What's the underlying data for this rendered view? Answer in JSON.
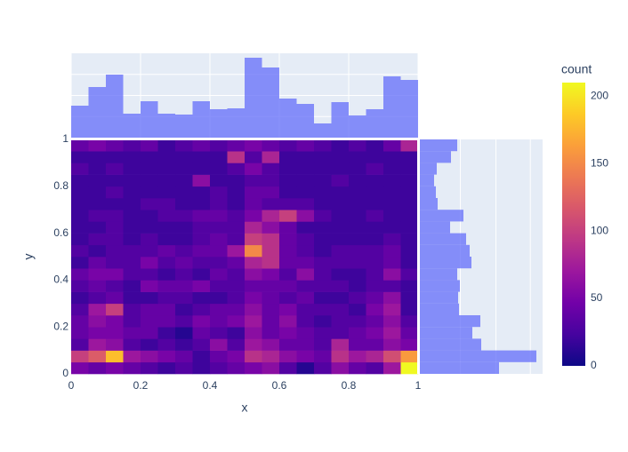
{
  "chart_data": {
    "type": "density_heatmap",
    "xlabel": "x",
    "ylabel": "y",
    "xlim": [
      0,
      1
    ],
    "xticks": [
      0,
      0.2,
      0.4,
      0.6,
      0.8,
      1
    ],
    "ylim": [
      0,
      1
    ],
    "yticks": [
      0,
      0.2,
      0.4,
      0.6,
      0.8,
      1
    ],
    "z": [
      [
        50,
        40,
        50,
        40,
        30,
        20,
        30,
        20,
        30,
        40,
        50,
        60,
        30,
        10,
        30,
        60,
        40,
        30,
        70,
        210
      ],
      [
        100,
        120,
        180,
        70,
        60,
        50,
        40,
        20,
        40,
        50,
        90,
        80,
        60,
        50,
        40,
        90,
        70,
        80,
        110,
        160
      ],
      [
        30,
        70,
        60,
        30,
        20,
        30,
        20,
        30,
        60,
        30,
        70,
        60,
        40,
        40,
        30,
        80,
        40,
        40,
        60,
        50
      ],
      [
        40,
        50,
        50,
        40,
        40,
        20,
        10,
        40,
        30,
        20,
        60,
        40,
        50,
        40,
        30,
        30,
        40,
        50,
        70,
        40
      ],
      [
        40,
        60,
        50,
        30,
        40,
        40,
        30,
        50,
        40,
        50,
        70,
        40,
        60,
        30,
        20,
        30,
        30,
        40,
        60,
        30
      ],
      [
        30,
        70,
        100,
        30,
        40,
        40,
        20,
        30,
        40,
        40,
        60,
        40,
        50,
        30,
        30,
        30,
        20,
        50,
        70,
        20
      ],
      [
        20,
        30,
        40,
        20,
        20,
        30,
        30,
        20,
        20,
        30,
        50,
        40,
        30,
        40,
        20,
        20,
        30,
        40,
        60,
        20
      ],
      [
        30,
        40,
        30,
        20,
        50,
        40,
        40,
        50,
        30,
        30,
        40,
        40,
        40,
        30,
        30,
        30,
        20,
        30,
        30,
        20
      ],
      [
        40,
        50,
        50,
        30,
        30,
        20,
        30,
        20,
        40,
        30,
        60,
        50,
        30,
        60,
        30,
        20,
        20,
        30,
        60,
        30
      ],
      [
        20,
        40,
        30,
        30,
        50,
        30,
        40,
        30,
        30,
        40,
        80,
        90,
        40,
        40,
        30,
        30,
        30,
        30,
        40,
        20
      ],
      [
        30,
        20,
        30,
        30,
        30,
        40,
        30,
        40,
        40,
        70,
        150,
        90,
        40,
        30,
        20,
        30,
        30,
        30,
        40,
        20
      ],
      [
        20,
        30,
        30,
        20,
        30,
        20,
        20,
        30,
        40,
        30,
        100,
        90,
        40,
        30,
        20,
        20,
        20,
        20,
        30,
        20
      ],
      [
        20,
        20,
        30,
        20,
        20,
        20,
        20,
        30,
        30,
        30,
        80,
        60,
        40,
        20,
        20,
        20,
        20,
        20,
        20,
        20
      ],
      [
        20,
        30,
        30,
        20,
        20,
        30,
        30,
        40,
        40,
        30,
        50,
        80,
        100,
        60,
        30,
        20,
        20,
        30,
        20,
        20
      ],
      [
        20,
        20,
        20,
        20,
        30,
        30,
        20,
        20,
        30,
        20,
        40,
        30,
        30,
        30,
        20,
        20,
        20,
        20,
        20,
        20
      ],
      [
        20,
        20,
        30,
        20,
        20,
        20,
        20,
        20,
        30,
        20,
        40,
        40,
        20,
        20,
        20,
        20,
        20,
        20,
        20,
        20
      ],
      [
        20,
        20,
        20,
        20,
        20,
        20,
        20,
        60,
        20,
        20,
        30,
        30,
        20,
        20,
        20,
        30,
        20,
        20,
        20,
        20
      ],
      [
        30,
        20,
        30,
        20,
        20,
        20,
        20,
        20,
        20,
        30,
        50,
        30,
        20,
        20,
        20,
        20,
        20,
        30,
        20,
        20
      ],
      [
        20,
        20,
        20,
        20,
        20,
        20,
        20,
        20,
        20,
        90,
        30,
        80,
        20,
        20,
        20,
        20,
        20,
        20,
        20,
        20
      ],
      [
        40,
        50,
        40,
        30,
        40,
        20,
        30,
        40,
        30,
        40,
        50,
        40,
        30,
        40,
        30,
        20,
        30,
        20,
        40,
        80
      ]
    ],
    "colorbar_title": "count",
    "zlim": [
      0,
      210
    ],
    "zticks": [
      0,
      50,
      100,
      150,
      200
    ],
    "colorscale": [
      "#0d0887",
      "#46039f",
      "#7201a8",
      "#9c179e",
      "#bd3786",
      "#d8576b",
      "#ed7953",
      "#fb9f3a",
      "#fdca26",
      "#f0f921"
    ],
    "marginal_color": "#636efa",
    "top_histogram": {
      "values": [
        576,
        912,
        1136,
        432,
        656,
        432,
        416,
        656,
        512,
        528,
        1440,
        1264,
        704,
        608,
        256,
        640,
        400,
        512,
        1104,
        1040
      ],
      "ylim": [
        0,
        1520
      ]
    },
    "right_histogram": {
      "values": [
        1424,
        2096,
        1104,
        944,
        1088,
        704,
        688,
        720,
        672,
        928,
        896,
        832,
        544,
        784,
        320,
        288,
        256,
        304,
        560,
        672
      ],
      "xlim": [
        0,
        2208
      ]
    }
  }
}
